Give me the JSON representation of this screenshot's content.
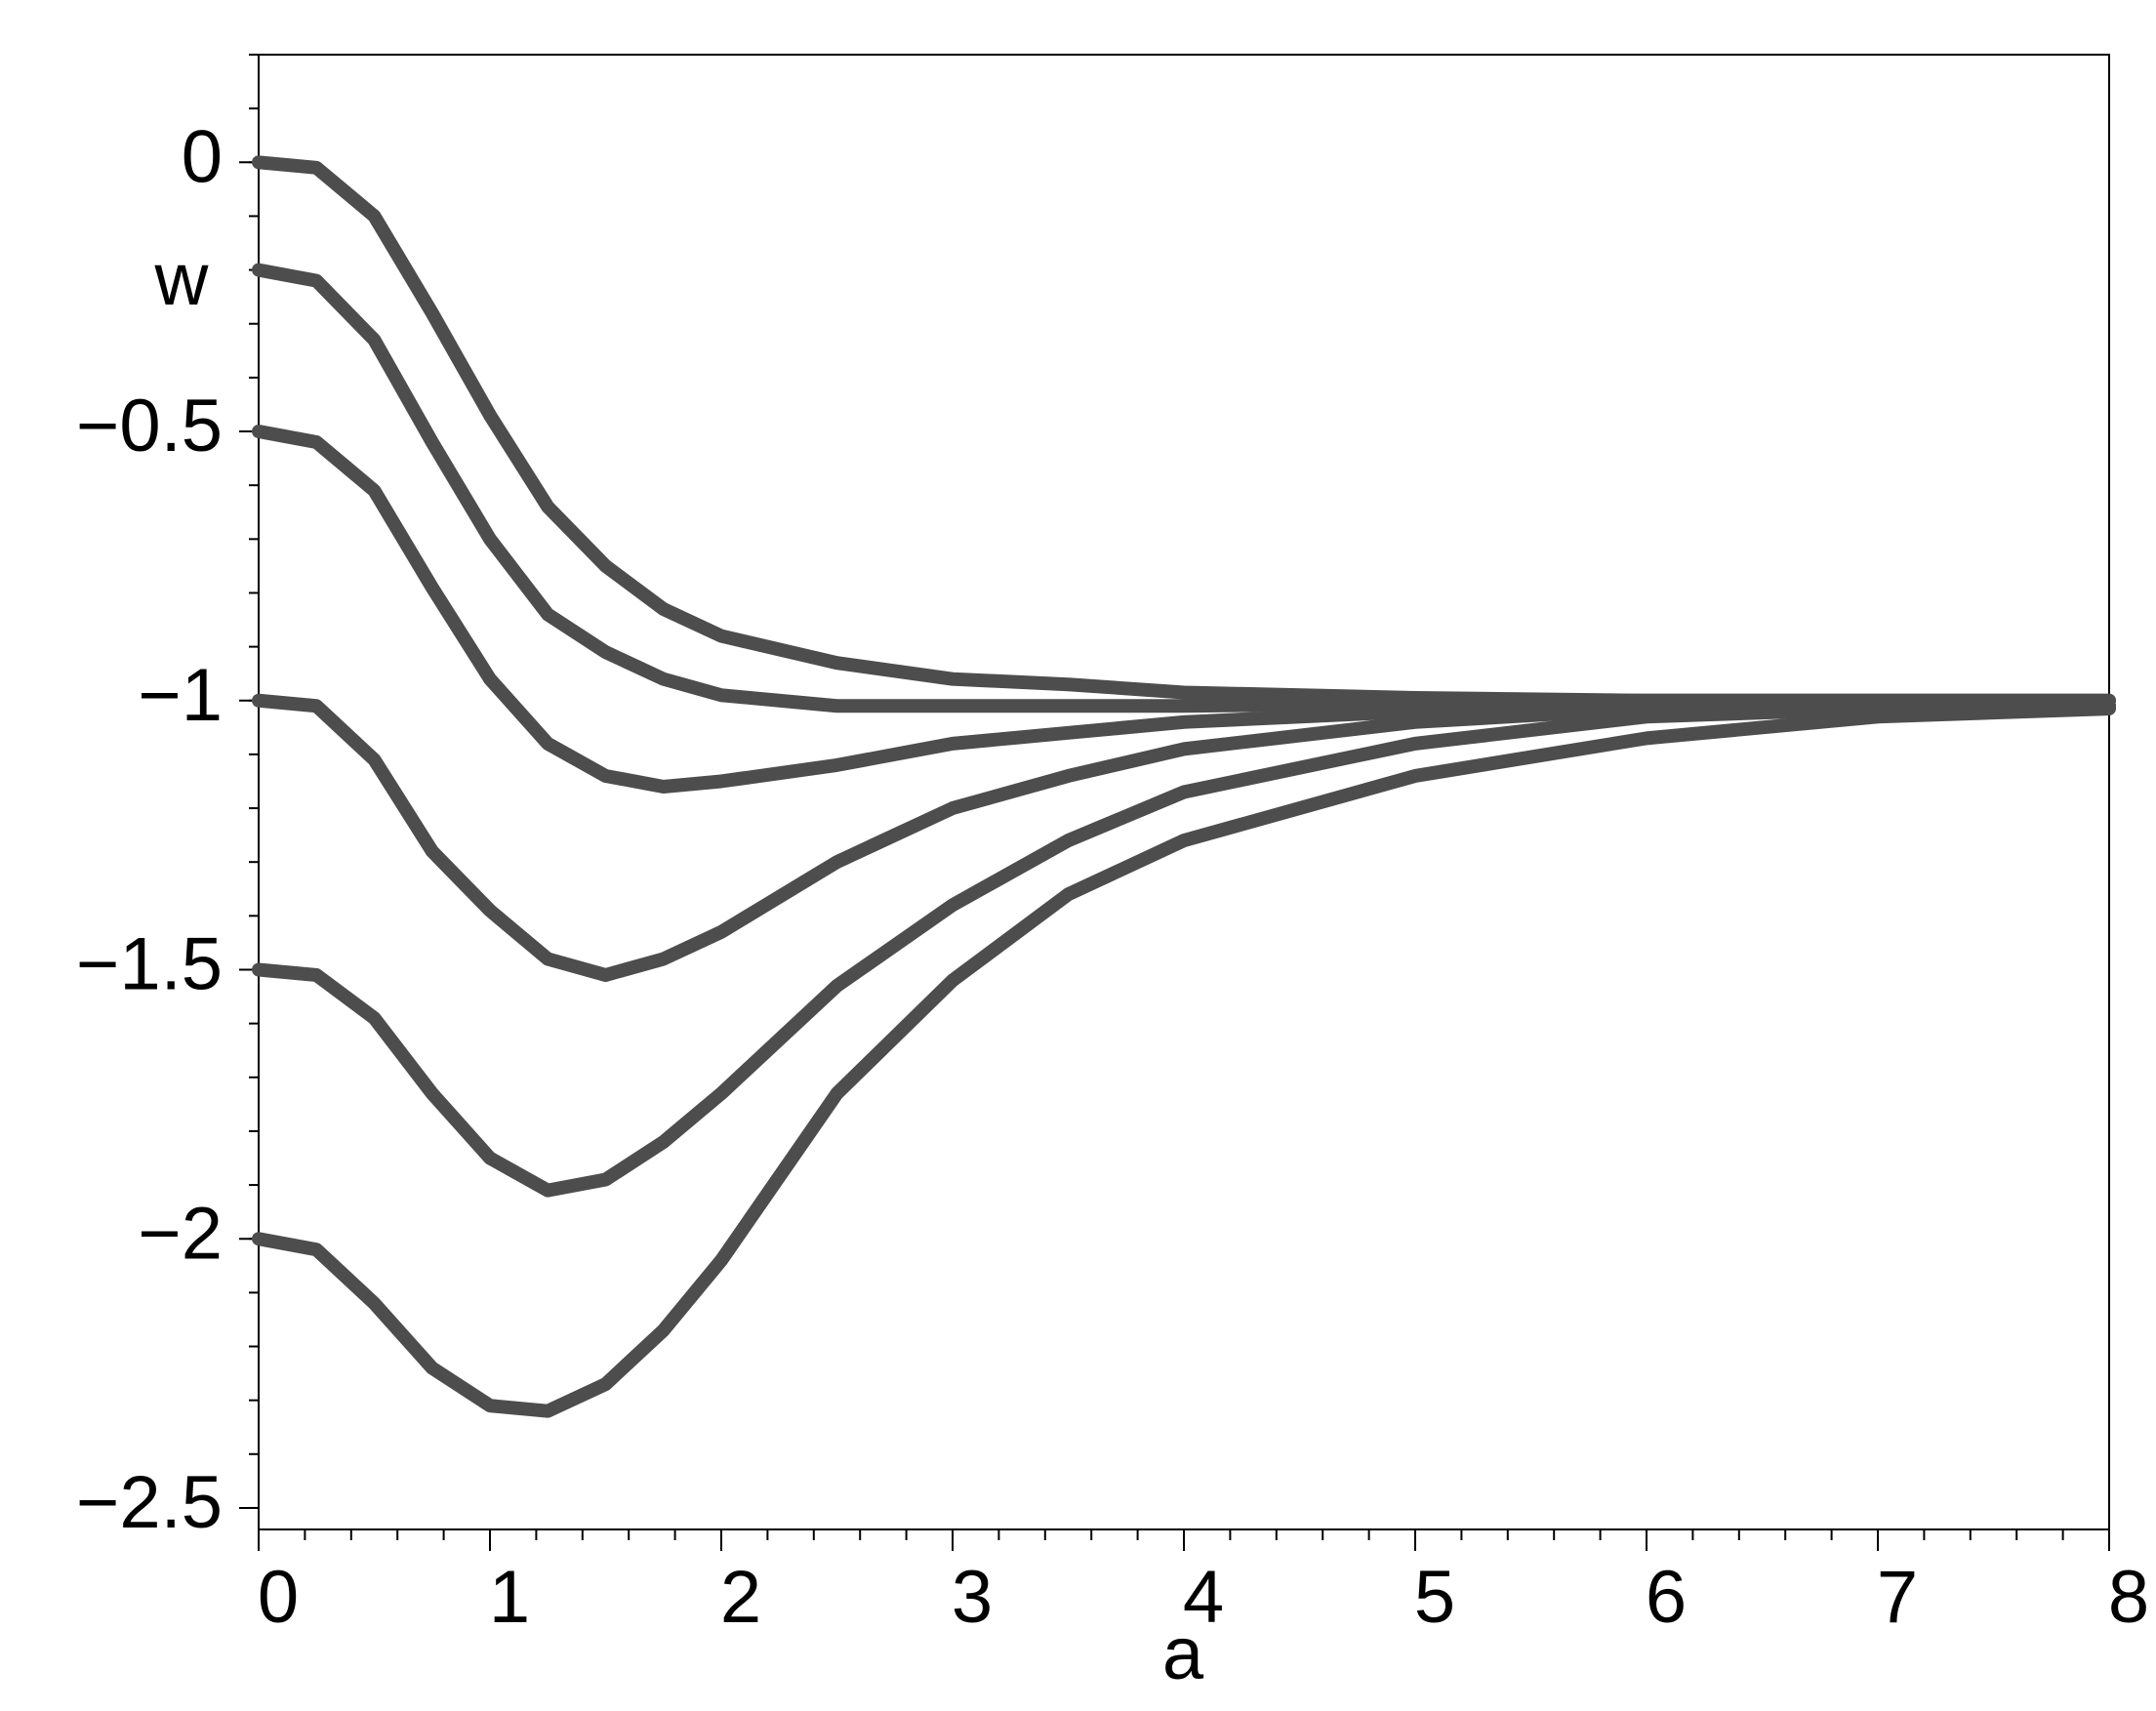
{
  "chart_data": {
    "type": "line",
    "x_label": "a",
    "y_label": "w",
    "x": [
      0,
      0.25,
      0.5,
      0.75,
      1,
      1.25,
      1.5,
      1.75,
      2,
      2.5,
      3,
      3.5,
      4,
      5,
      6,
      7,
      8
    ],
    "series": [
      {
        "color": "#4d4d4d",
        "values": [
          0,
          -0.01,
          -0.1,
          -0.28,
          -0.47,
          -0.64,
          -0.75,
          -0.83,
          -0.88,
          -0.93,
          -0.96,
          -0.97,
          -0.985,
          -0.995,
          -1,
          -1,
          -1
        ]
      },
      {
        "color": "#4d4d4d",
        "values": [
          -0.2,
          -0.22,
          -0.33,
          -0.52,
          -0.7,
          -0.84,
          -0.91,
          -0.96,
          -0.99,
          -1.01,
          -1.01,
          -1.01,
          -1.01,
          -1.005,
          -1,
          -1,
          -1
        ]
      },
      {
        "color": "#4d4d4d",
        "values": [
          -0.5,
          -0.52,
          -0.61,
          -0.79,
          -0.96,
          -1.08,
          -1.14,
          -1.16,
          -1.15,
          -1.12,
          -1.08,
          -1.06,
          -1.04,
          -1.02,
          -1.015,
          -1.01,
          -1.01
        ]
      },
      {
        "color": "#4d4d4d",
        "values": [
          -1,
          -1.01,
          -1.11,
          -1.28,
          -1.39,
          -1.48,
          -1.51,
          -1.48,
          -1.43,
          -1.3,
          -1.2,
          -1.14,
          -1.09,
          -1.04,
          -1.015,
          -1.01,
          -1.01
        ]
      },
      {
        "color": "#4d4d4d",
        "values": [
          -1.5,
          -1.51,
          -1.59,
          -1.73,
          -1.85,
          -1.91,
          -1.89,
          -1.82,
          -1.73,
          -1.53,
          -1.38,
          -1.26,
          -1.17,
          -1.08,
          -1.03,
          -1.015,
          -1.01
        ]
      },
      {
        "color": "#4d4d4d",
        "values": [
          -2,
          -2.02,
          -2.12,
          -2.24,
          -2.31,
          -2.32,
          -2.27,
          -2.17,
          -2.04,
          -1.73,
          -1.52,
          -1.36,
          -1.26,
          -1.14,
          -1.07,
          -1.03,
          -1.015
        ]
      }
    ],
    "xlim": [
      0,
      8
    ],
    "xticks": [
      0,
      1,
      2,
      3,
      4,
      5,
      6,
      7,
      8
    ],
    "ylim": [
      -2.54,
      0.2
    ],
    "yticks": [
      {
        "value": -2.5,
        "label": "−2.5"
      },
      {
        "value": -2,
        "label": "−2"
      },
      {
        "value": -1.5,
        "label": "−1.5"
      },
      {
        "value": -1,
        "label": "−1"
      },
      {
        "value": -0.5,
        "label": "−0.5"
      },
      0
    ],
    "grid": false
  }
}
